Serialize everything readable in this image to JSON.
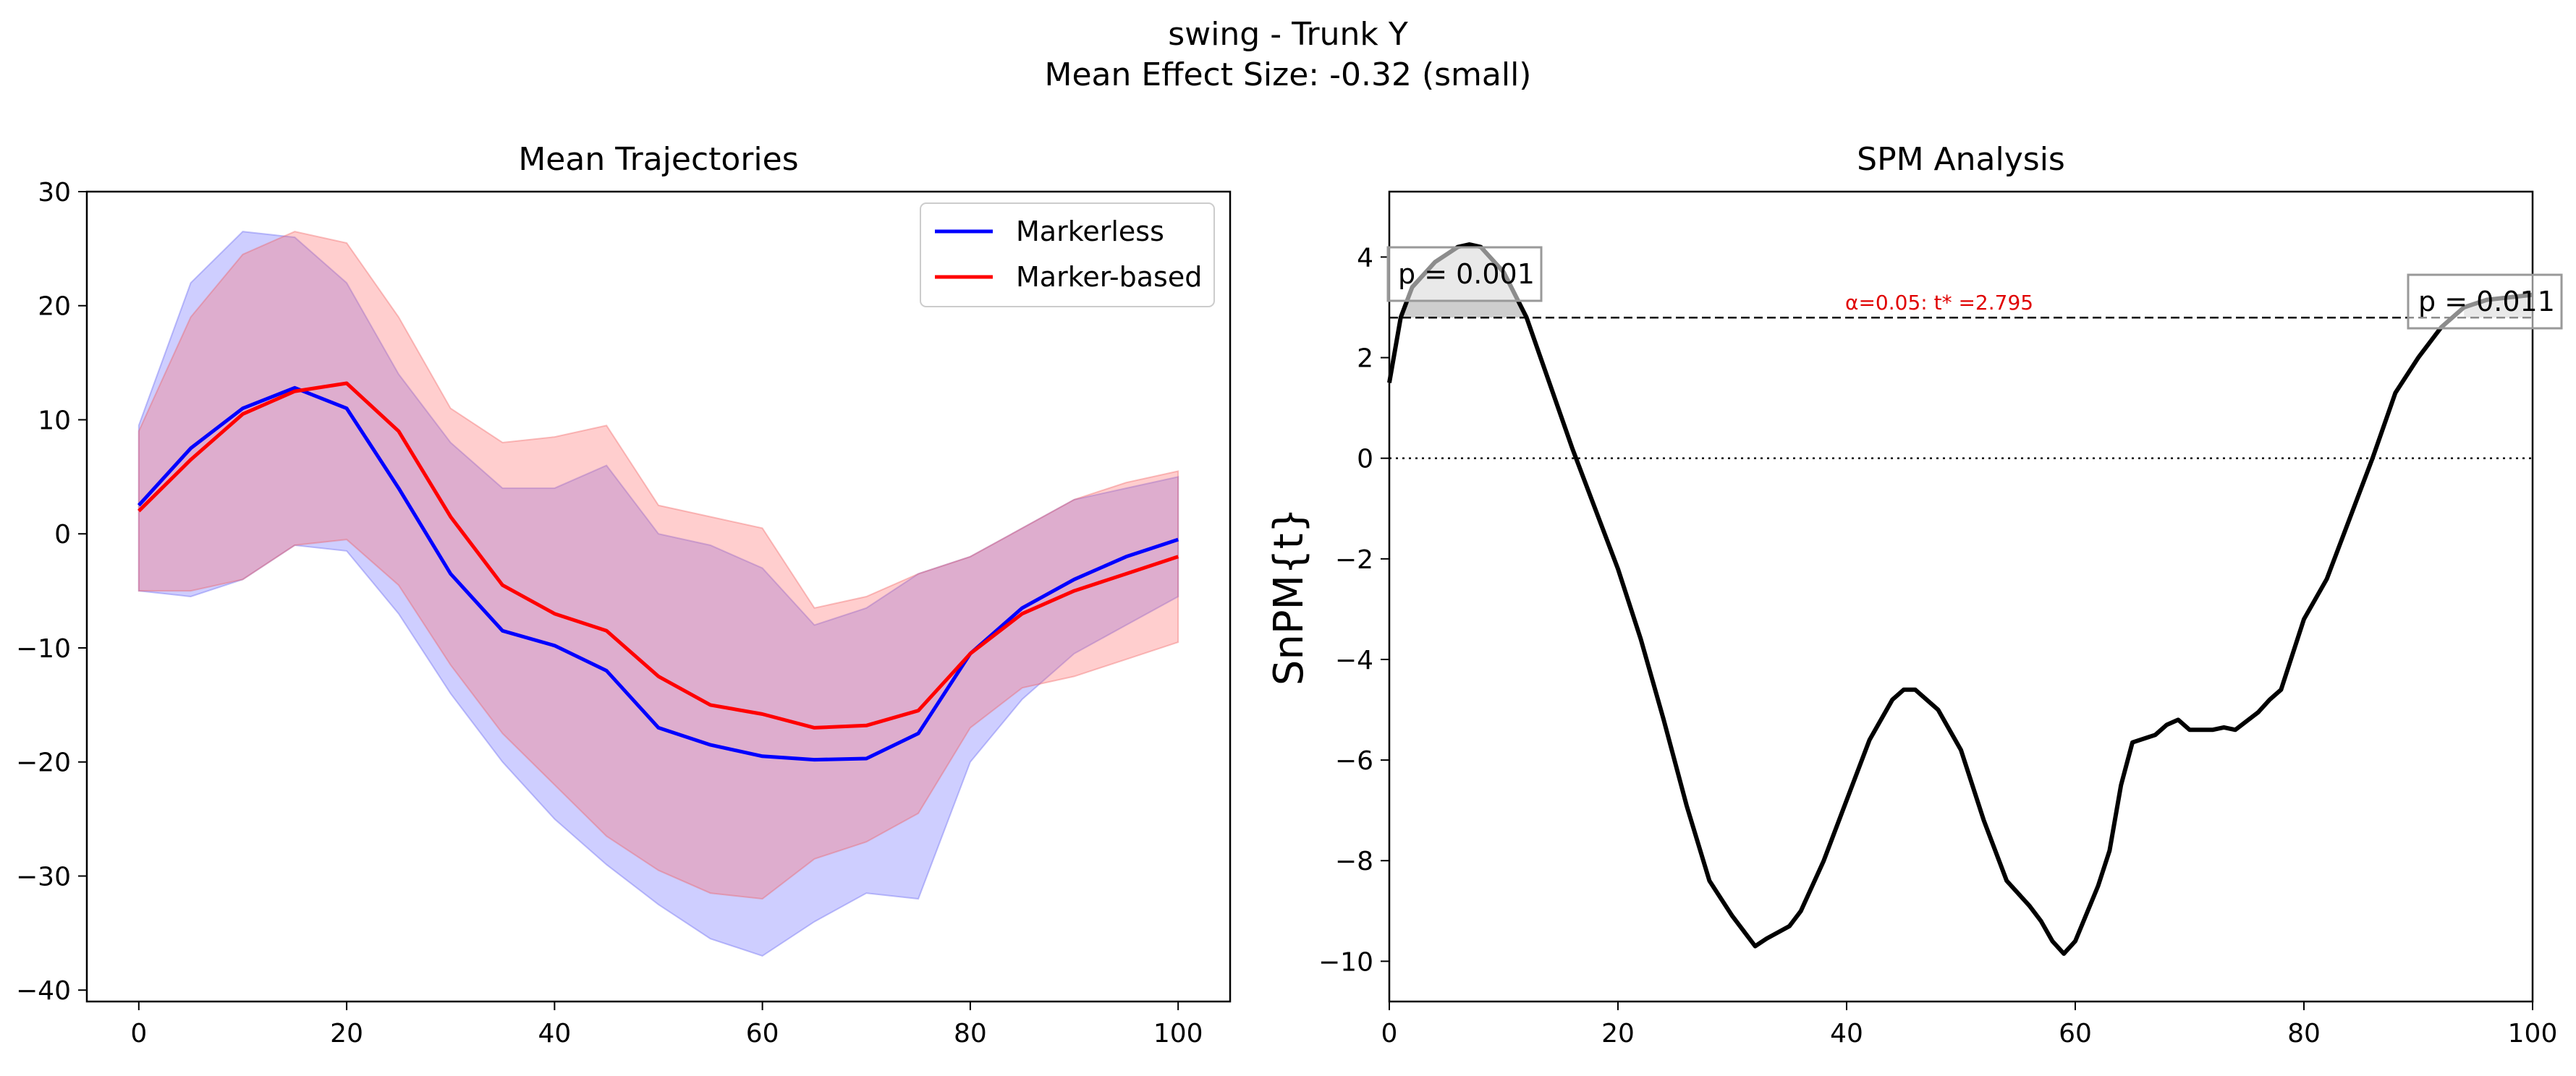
{
  "figure": {
    "title": "swing - Trunk Y",
    "subtitle": "Mean Effect Size: -0.32 (small)"
  },
  "chart_data": [
    {
      "type": "line",
      "title": "Mean Trajectories",
      "xlabel": "",
      "ylabel": "",
      "xlim": [
        -5,
        105
      ],
      "ylim": [
        -41,
        30
      ],
      "xticks": [
        0,
        20,
        40,
        60,
        80,
        100
      ],
      "yticks": [
        -40,
        -30,
        -20,
        -10,
        0,
        10,
        20,
        30
      ],
      "grid": false,
      "legend": "top-right",
      "x": [
        0,
        5,
        10,
        15,
        20,
        25,
        30,
        35,
        40,
        45,
        50,
        55,
        60,
        65,
        70,
        75,
        80,
        85,
        90,
        95,
        100
      ],
      "series": [
        {
          "name": "Markerless",
          "color": "#0000ff",
          "values": [
            2.5,
            7.5,
            11.0,
            12.8,
            11.0,
            4.0,
            -3.5,
            -8.5,
            -9.8,
            -12.0,
            -17.0,
            -18.5,
            -19.5,
            -19.8,
            -19.7,
            -17.5,
            -10.5,
            -6.5,
            -4.0,
            -2.0,
            -0.5
          ],
          "band_upper": [
            9.5,
            22.0,
            26.5,
            26.0,
            22.0,
            14.0,
            8.0,
            4.0,
            4.0,
            6.0,
            0.0,
            -1.0,
            -3.0,
            -8.0,
            -6.5,
            -3.5,
            -2.0,
            0.5,
            3.0,
            4.0,
            5.0
          ],
          "band_lower": [
            -5.0,
            -5.5,
            -4.0,
            -1.0,
            -1.5,
            -7.0,
            -14.0,
            -20.0,
            -25.0,
            -29.0,
            -32.5,
            -35.5,
            -37.0,
            -34.0,
            -31.5,
            -32.0,
            -20.0,
            -14.5,
            -10.5,
            -8.0,
            -5.5
          ]
        },
        {
          "name": "Marker-based",
          "color": "#ff0000",
          "values": [
            2.0,
            6.5,
            10.5,
            12.5,
            13.2,
            9.0,
            1.5,
            -4.5,
            -7.0,
            -8.5,
            -12.5,
            -15.0,
            -15.8,
            -17.0,
            -16.8,
            -15.5,
            -10.5,
            -7.0,
            -5.0,
            -3.5,
            -2.0
          ],
          "band_upper": [
            9.0,
            19.0,
            24.5,
            26.5,
            25.5,
            19.0,
            11.0,
            8.0,
            8.5,
            9.5,
            2.5,
            1.5,
            0.5,
            -6.5,
            -5.5,
            -3.5,
            -2.0,
            0.5,
            3.0,
            4.5,
            5.5
          ],
          "band_lower": [
            -5.0,
            -5.0,
            -4.0,
            -1.0,
            -0.5,
            -4.5,
            -11.5,
            -17.5,
            -22.0,
            -26.5,
            -29.5,
            -31.5,
            -32.0,
            -28.5,
            -27.0,
            -24.5,
            -17.0,
            -13.5,
            -12.5,
            -11.0,
            -9.5
          ]
        }
      ]
    },
    {
      "type": "line",
      "title": "SPM Analysis",
      "xlabel": "",
      "ylabel": "SnPM{t}",
      "xlim": [
        0,
        100
      ],
      "ylim": [
        -10.8,
        5.3
      ],
      "xticks": [
        0,
        20,
        40,
        60,
        80,
        100
      ],
      "yticks": [
        -10,
        -8,
        -6,
        -4,
        -2,
        0,
        2,
        4
      ],
      "grid": false,
      "x": [
        0,
        1,
        2,
        4,
        6,
        7,
        8,
        10,
        12,
        14,
        16,
        18,
        20,
        22,
        24,
        26,
        28,
        30,
        32,
        33,
        35,
        36,
        38,
        40,
        42,
        44,
        45,
        46,
        48,
        50,
        52,
        54,
        56,
        57,
        58,
        59,
        60,
        62,
        63,
        64,
        65,
        67,
        68,
        69,
        70,
        72,
        73,
        74,
        76,
        77,
        78,
        80,
        82,
        84,
        86,
        88,
        90,
        92,
        94,
        96,
        98,
        100
      ],
      "series": [
        {
          "name": "",
          "color": "#000000",
          "values": [
            1.5,
            2.8,
            3.4,
            3.9,
            4.2,
            4.25,
            4.2,
            3.7,
            2.8,
            1.5,
            0.2,
            -1.0,
            -2.2,
            -3.6,
            -5.2,
            -6.9,
            -8.4,
            -9.1,
            -9.7,
            -9.55,
            -9.3,
            -9.0,
            -8.0,
            -6.8,
            -5.6,
            -4.8,
            -4.6,
            -4.6,
            -5.0,
            -5.8,
            -7.2,
            -8.4,
            -8.9,
            -9.2,
            -9.6,
            -9.85,
            -9.6,
            -8.5,
            -7.8,
            -6.5,
            -5.65,
            -5.5,
            -5.3,
            -5.2,
            -5.4,
            -5.4,
            -5.35,
            -5.4,
            -5.05,
            -4.8,
            -4.6,
            -3.2,
            -2.4,
            -1.2,
            0.0,
            1.3,
            2.0,
            2.6,
            3.0,
            3.15,
            3.2,
            3.25
          ]
        }
      ],
      "threshold": 2.795,
      "threshold_label": "α=0.05:  t* =2.795",
      "clusters": [
        {
          "x_start": 0,
          "x_end": 12.5,
          "label": "p = 0.001"
        },
        {
          "x_start": 89.5,
          "x_end": 100,
          "label": "p = 0.011"
        }
      ]
    }
  ]
}
